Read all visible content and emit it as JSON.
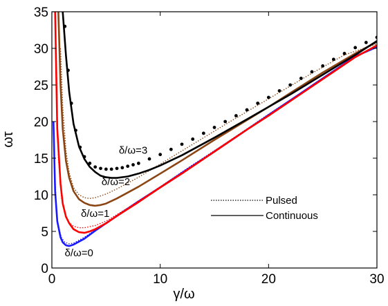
{
  "chart_data": {
    "type": "line",
    "xlabel": "γ/ω",
    "ylabel": "ωτ",
    "xlim": [
      0,
      30
    ],
    "ylim": [
      0,
      35
    ],
    "xticks": [
      0,
      10,
      20,
      30
    ],
    "yticks": [
      0,
      5,
      10,
      15,
      20,
      25,
      30,
      35
    ],
    "grid": false,
    "legend": {
      "placement": "center-right",
      "entries": [
        {
          "label": "Pulsed",
          "style": "dotted"
        },
        {
          "label": "Continuous",
          "style": "solid"
        }
      ]
    },
    "series": [
      {
        "name": "δ/ω=0",
        "color": "#1a1aff",
        "style": "solid",
        "x": [
          0.15,
          0.3,
          0.5,
          0.8,
          1.0,
          1.3,
          1.6,
          2.0,
          2.5,
          3.0,
          4.0,
          5.0,
          6.0,
          8.0,
          10.0,
          12.0,
          15.0,
          18.0,
          20.0,
          22.0,
          25.0,
          28.0,
          30.0
        ],
        "y": [
          20.0,
          10.5,
          6.4,
          4.2,
          3.5,
          3.1,
          3.0,
          3.2,
          3.6,
          4.0,
          5.1,
          6.1,
          7.1,
          9.1,
          11.0,
          13.0,
          15.9,
          18.9,
          20.9,
          22.9,
          25.9,
          28.9,
          30.2
        ]
      },
      {
        "name": "δ/ω=0",
        "color": "#1a1aff",
        "style": "dotted",
        "x": [
          0.2,
          0.4,
          0.6,
          0.9,
          1.2,
          1.6,
          2.0,
          2.5,
          3.0,
          4.0,
          5.0,
          7.0,
          10.0,
          13.0,
          16.0,
          20.0,
          24.0,
          27.0,
          30.0
        ],
        "y": [
          16.0,
          8.2,
          5.6,
          4.1,
          3.5,
          3.3,
          3.4,
          3.8,
          4.2,
          5.2,
          6.2,
          8.2,
          11.1,
          14.1,
          17.0,
          21.0,
          24.9,
          27.9,
          30.4
        ]
      },
      {
        "name": "δ/ω=1",
        "color": "#ff0000",
        "style": "solid",
        "x": [
          0.3,
          0.5,
          0.8,
          1.0,
          1.3,
          1.6,
          2.0,
          2.5,
          3.0,
          3.5,
          4.0,
          5.0,
          6.0,
          8.0,
          10.0,
          12.0,
          15.0,
          18.0,
          20.0,
          22.0,
          25.0,
          28.0,
          30.0
        ],
        "y": [
          35.0,
          19.0,
          11.5,
          8.8,
          7.0,
          6.1,
          5.3,
          4.9,
          4.8,
          5.0,
          5.3,
          6.1,
          7.1,
          9.0,
          11.0,
          12.9,
          15.9,
          18.9,
          20.8,
          22.8,
          25.8,
          28.8,
          30.4
        ]
      },
      {
        "name": "δ/ω=1",
        "color": "#ff0000",
        "style": "dotted",
        "x": [
          0.4,
          0.6,
          0.9,
          1.2,
          1.6,
          2.0,
          2.5,
          3.0,
          4.0,
          5.0,
          7.0,
          10.0,
          13.0,
          16.0,
          20.0,
          24.0,
          27.0,
          30.0
        ],
        "y": [
          26.0,
          15.0,
          9.5,
          7.4,
          6.2,
          5.7,
          5.5,
          5.5,
          5.8,
          6.4,
          8.2,
          11.1,
          14.0,
          17.0,
          20.9,
          24.8,
          27.9,
          30.5
        ]
      },
      {
        "name": "δ/ω=2",
        "color": "#8b4513",
        "style": "solid",
        "x": [
          0.6,
          0.8,
          1.0,
          1.3,
          1.6,
          2.0,
          2.5,
          3.0,
          3.5,
          4.0,
          4.5,
          5.0,
          6.0,
          7.0,
          8.0,
          10.0,
          12.0,
          15.0,
          18.0,
          20.0,
          22.0,
          25.0,
          28.0,
          30.0
        ],
        "y": [
          35.0,
          25.0,
          19.0,
          14.6,
          12.3,
          10.5,
          9.4,
          8.9,
          8.6,
          8.5,
          8.6,
          8.8,
          9.5,
          10.3,
          11.1,
          12.9,
          14.7,
          17.5,
          20.2,
          22.0,
          23.9,
          26.7,
          29.3,
          30.9
        ]
      },
      {
        "name": "δ/ω=2",
        "color": "#8b4513",
        "style": "dotted",
        "x": [
          0.8,
          1.0,
          1.3,
          1.6,
          2.0,
          2.5,
          3.0,
          3.5,
          4.0,
          5.0,
          6.0,
          8.0,
          10.0,
          13.0,
          16.0,
          20.0,
          24.0,
          27.0,
          30.0
        ],
        "y": [
          30.0,
          22.0,
          16.0,
          13.0,
          11.0,
          10.0,
          9.6,
          9.5,
          9.6,
          10.1,
          10.8,
          12.4,
          14.2,
          16.9,
          19.6,
          23.1,
          26.6,
          29.1,
          30.6
        ]
      },
      {
        "name": "δ/ω=3",
        "color": "#000000",
        "style": "solid",
        "x": [
          1.0,
          1.3,
          1.6,
          2.0,
          2.5,
          3.0,
          3.5,
          4.0,
          4.5,
          5.0,
          5.5,
          6.0,
          7.0,
          8.0,
          9.0,
          10.0,
          12.0,
          15.0,
          18.0,
          20.0,
          22.0,
          25.0,
          28.0,
          30.0
        ],
        "y": [
          35.0,
          29.0,
          24.0,
          19.7,
          16.6,
          14.9,
          13.8,
          13.1,
          12.6,
          12.4,
          12.3,
          12.3,
          12.5,
          12.9,
          13.4,
          14.0,
          15.4,
          17.8,
          20.3,
          22.0,
          23.7,
          26.4,
          29.1,
          31.0
        ]
      },
      {
        "name": "δ/ω=3",
        "color": "#000000",
        "style": "dots",
        "x": [
          1.2,
          1.5,
          1.8,
          2.2,
          2.6,
          3.0,
          3.5,
          4.0,
          4.5,
          5.0,
          5.5,
          6.0,
          6.5,
          7.0,
          7.5,
          8.0,
          9.0,
          10.0,
          11.0,
          12.0,
          13.0,
          14.0,
          15.0,
          16.0,
          17.0,
          18.0,
          19.0,
          20.0,
          21.0,
          22.0,
          23.0,
          24.0,
          25.0,
          26.0,
          27.0,
          28.0,
          29.0,
          30.0
        ],
        "y": [
          33.0,
          27.0,
          22.5,
          18.8,
          16.5,
          15.2,
          14.3,
          13.8,
          13.6,
          13.5,
          13.5,
          13.6,
          13.7,
          13.9,
          14.1,
          14.3,
          14.9,
          15.5,
          16.2,
          16.9,
          17.6,
          18.4,
          19.2,
          20.0,
          20.8,
          21.6,
          22.5,
          23.3,
          24.2,
          25.0,
          25.9,
          26.8,
          27.6,
          28.5,
          29.3,
          30.1,
          30.8,
          31.5
        ]
      }
    ],
    "annotations": [
      {
        "text": "δ/ω=3",
        "x": 7.5,
        "y": 15.6
      },
      {
        "text": "δ/ω=2",
        "x": 5.9,
        "y": 11.3
      },
      {
        "text": "δ/ω=1",
        "x": 4.0,
        "y": 7.0
      },
      {
        "text": "δ/ω=0",
        "x": 2.5,
        "y": 1.6
      }
    ]
  }
}
